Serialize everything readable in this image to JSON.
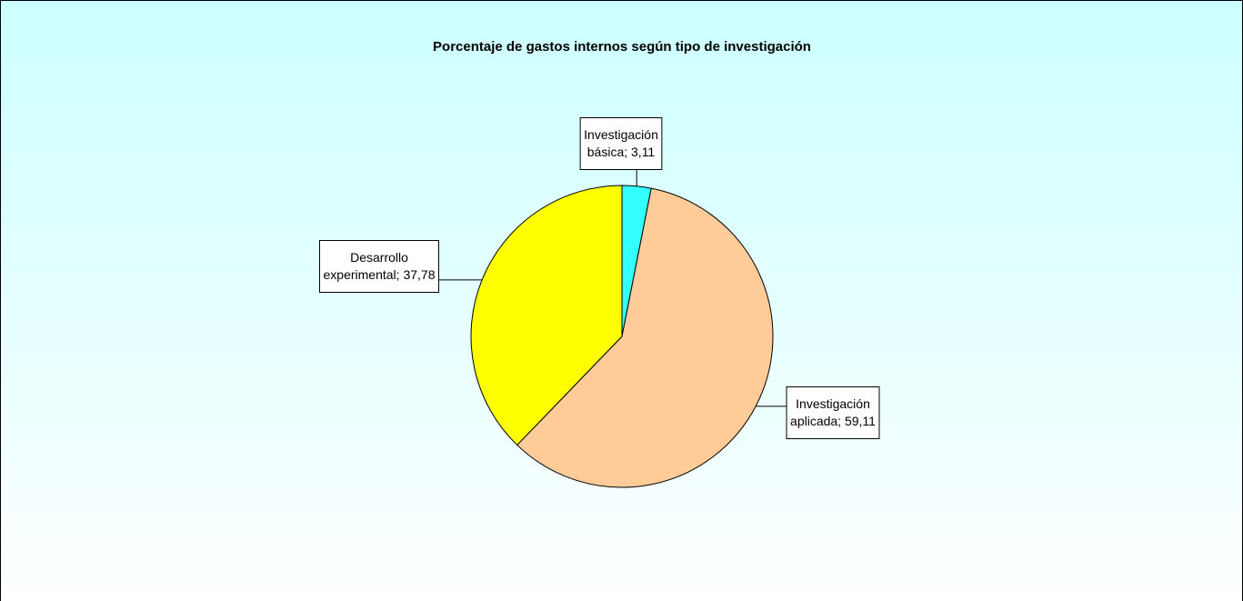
{
  "chart_data": {
    "type": "pie",
    "title": "Porcentaje de gastos internos según tipo de investigación",
    "values": [
      3.11,
      59.11,
      37.78
    ],
    "value_labels": [
      "Investigación básica; 3,11",
      "Investigación aplicada; 59,11",
      "Desarrollo experimental; 37,78"
    ],
    "colors": [
      "#33ffff",
      "#ffcc99",
      "#ffff00"
    ]
  }
}
